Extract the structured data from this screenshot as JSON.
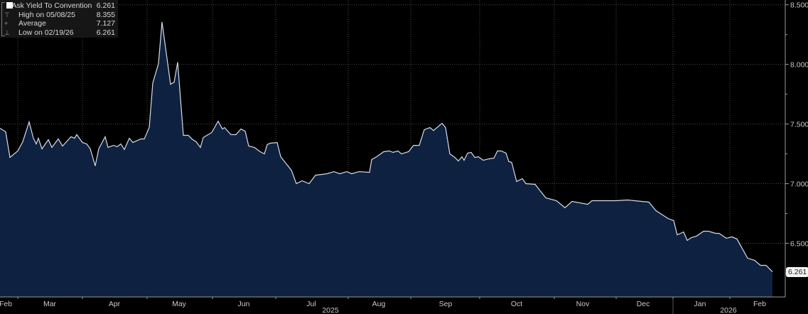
{
  "legend": {
    "items": [
      {
        "label": "Ask Yield To Convention",
        "value": "6.261"
      },
      {
        "label": "High on 05/08/25",
        "value": "8.355"
      },
      {
        "label": "Average",
        "value": "7.127"
      },
      {
        "label": "Low on 02/19/26",
        "value": "6.261"
      }
    ]
  },
  "last_value_badge": "6.261",
  "chart_data": {
    "type": "area",
    "title": "",
    "xlabel": "",
    "ylabel": "Ask Yield To Convention",
    "series_name": "Ask Yield To Convention",
    "x_unit": "trading days from start",
    "xlim": [
      0,
      276.25
    ],
    "ylim": [
      6.05,
      8.54
    ],
    "y_ticks": [
      6.5,
      7.0,
      7.5,
      8.0,
      8.5
    ],
    "y_tick_labels": [
      "6.500",
      "7.000",
      "7.500",
      "8.000",
      "8.500"
    ],
    "y_minor_ticks": [
      6.25,
      6.75,
      7.25,
      7.75,
      8.25
    ],
    "y_axis_side": "right",
    "grid": true,
    "month_gridlines": [
      6.25,
      29,
      51.75,
      74.75,
      97,
      122.5,
      144.5,
      168.75,
      195,
      216.75,
      236.75,
      256.75
    ],
    "month_labels": [
      {
        "label": "Feb",
        "x": 2
      },
      {
        "label": "Mar",
        "x": 17.5
      },
      {
        "label": "Apr",
        "x": 40.25
      },
      {
        "label": "May",
        "x": 63
      },
      {
        "label": "Jun",
        "x": 85.75
      },
      {
        "label": "Jul",
        "x": 109.5
      },
      {
        "label": "Aug",
        "x": 133.25
      },
      {
        "label": "Sep",
        "x": 156.75
      },
      {
        "label": "Oct",
        "x": 181.75
      },
      {
        "label": "Nov",
        "x": 205
      },
      {
        "label": "Dec",
        "x": 226.25
      },
      {
        "label": "Jan",
        "x": 246.25
      },
      {
        "label": "Feb",
        "x": 267.25
      }
    ],
    "year_labels": [
      {
        "label": "2025",
        "x": 116.25
      },
      {
        "label": "2026",
        "x": 256.25
      }
    ],
    "year_divider": 236.75,
    "points": [
      [
        0,
        7.464
      ],
      [
        2,
        7.435
      ],
      [
        3.5,
        7.22
      ],
      [
        6.25,
        7.274
      ],
      [
        8,
        7.351
      ],
      [
        10.25,
        7.518
      ],
      [
        11.75,
        7.381
      ],
      [
        12.75,
        7.333
      ],
      [
        13.5,
        7.381
      ],
      [
        14.75,
        7.292
      ],
      [
        17,
        7.369
      ],
      [
        18.25,
        7.304
      ],
      [
        20.5,
        7.375
      ],
      [
        22,
        7.315
      ],
      [
        25,
        7.393
      ],
      [
        26.25,
        7.381
      ],
      [
        27,
        7.411
      ],
      [
        29,
        7.345
      ],
      [
        30.5,
        7.333
      ],
      [
        31.75,
        7.292
      ],
      [
        33.5,
        7.149
      ],
      [
        34.75,
        7.292
      ],
      [
        37,
        7.393
      ],
      [
        38,
        7.304
      ],
      [
        40,
        7.321
      ],
      [
        41.25,
        7.31
      ],
      [
        42.5,
        7.333
      ],
      [
        43.75,
        7.286
      ],
      [
        45.5,
        7.381
      ],
      [
        46.75,
        7.345
      ],
      [
        49.5,
        7.375
      ],
      [
        50.75,
        7.375
      ],
      [
        52.5,
        7.47
      ],
      [
        53.75,
        7.845
      ],
      [
        55.75,
        8.006
      ],
      [
        57,
        8.355
      ],
      [
        60,
        7.833
      ],
      [
        61.25,
        7.851
      ],
      [
        62.5,
        8.018
      ],
      [
        64.5,
        7.405
      ],
      [
        66.25,
        7.405
      ],
      [
        67.5,
        7.375
      ],
      [
        69,
        7.351
      ],
      [
        70.5,
        7.304
      ],
      [
        71.5,
        7.387
      ],
      [
        74.5,
        7.429
      ],
      [
        76.75,
        7.524
      ],
      [
        78.25,
        7.458
      ],
      [
        79,
        7.47
      ],
      [
        81.25,
        7.411
      ],
      [
        83,
        7.411
      ],
      [
        84.75,
        7.458
      ],
      [
        86.25,
        7.44
      ],
      [
        87.5,
        7.315
      ],
      [
        89.5,
        7.304
      ],
      [
        91.5,
        7.268
      ],
      [
        93,
        7.25
      ],
      [
        94,
        7.327
      ],
      [
        95,
        7.339
      ],
      [
        97.5,
        7.345
      ],
      [
        98.75,
        7.226
      ],
      [
        100.5,
        7.173
      ],
      [
        102.5,
        7.113
      ],
      [
        104.25,
        7.0
      ],
      [
        106.25,
        7.024
      ],
      [
        108.75,
        7.0
      ],
      [
        111,
        7.071
      ],
      [
        115,
        7.083
      ],
      [
        117.5,
        7.101
      ],
      [
        119.5,
        7.083
      ],
      [
        122,
        7.101
      ],
      [
        123.75,
        7.083
      ],
      [
        126.25,
        7.101
      ],
      [
        130,
        7.095
      ],
      [
        130.75,
        7.202
      ],
      [
        132.5,
        7.226
      ],
      [
        135,
        7.268
      ],
      [
        137,
        7.274
      ],
      [
        138.25,
        7.262
      ],
      [
        140,
        7.274
      ],
      [
        141.25,
        7.25
      ],
      [
        143.75,
        7.268
      ],
      [
        145.5,
        7.321
      ],
      [
        147.5,
        7.321
      ],
      [
        149.25,
        7.452
      ],
      [
        151.25,
        7.47
      ],
      [
        152.5,
        7.446
      ],
      [
        155.5,
        7.506
      ],
      [
        156.75,
        7.47
      ],
      [
        158.25,
        7.25
      ],
      [
        160,
        7.22
      ],
      [
        161.25,
        7.19
      ],
      [
        162.5,
        7.226
      ],
      [
        163.25,
        7.196
      ],
      [
        164.5,
        7.256
      ],
      [
        165.75,
        7.262
      ],
      [
        167,
        7.22
      ],
      [
        168.25,
        7.226
      ],
      [
        170,
        7.196
      ],
      [
        172,
        7.208
      ],
      [
        173.75,
        7.214
      ],
      [
        175,
        7.274
      ],
      [
        176.25,
        7.274
      ],
      [
        178,
        7.256
      ],
      [
        179,
        7.185
      ],
      [
        180,
        7.179
      ],
      [
        181.75,
        7.018
      ],
      [
        183.75,
        7.042
      ],
      [
        185,
        7.0
      ],
      [
        188.25,
        6.994
      ],
      [
        192,
        6.881
      ],
      [
        195.75,
        6.857
      ],
      [
        198.75,
        6.798
      ],
      [
        201.25,
        6.851
      ],
      [
        206.75,
        6.827
      ],
      [
        208.25,
        6.857
      ],
      [
        216.75,
        6.857
      ],
      [
        220.75,
        6.863
      ],
      [
        228.25,
        6.845
      ],
      [
        230.75,
        6.774
      ],
      [
        235,
        6.708
      ],
      [
        237,
        6.69
      ],
      [
        238.25,
        6.571
      ],
      [
        240.5,
        6.595
      ],
      [
        241.75,
        6.524
      ],
      [
        243.25,
        6.548
      ],
      [
        245,
        6.56
      ],
      [
        247.5,
        6.601
      ],
      [
        249.25,
        6.601
      ],
      [
        251.75,
        6.583
      ],
      [
        253,
        6.583
      ],
      [
        255.5,
        6.542
      ],
      [
        257.5,
        6.554
      ],
      [
        259.25,
        6.536
      ],
      [
        263,
        6.375
      ],
      [
        265.5,
        6.357
      ],
      [
        267.5,
        6.315
      ],
      [
        269.5,
        6.315
      ],
      [
        271.75,
        6.261
      ]
    ]
  },
  "colors": {
    "background": "#000000",
    "area_fill": "#0e2140",
    "line": "#d6dde6",
    "grid": "#4a4a4a",
    "axis": "#9a9a9a"
  }
}
